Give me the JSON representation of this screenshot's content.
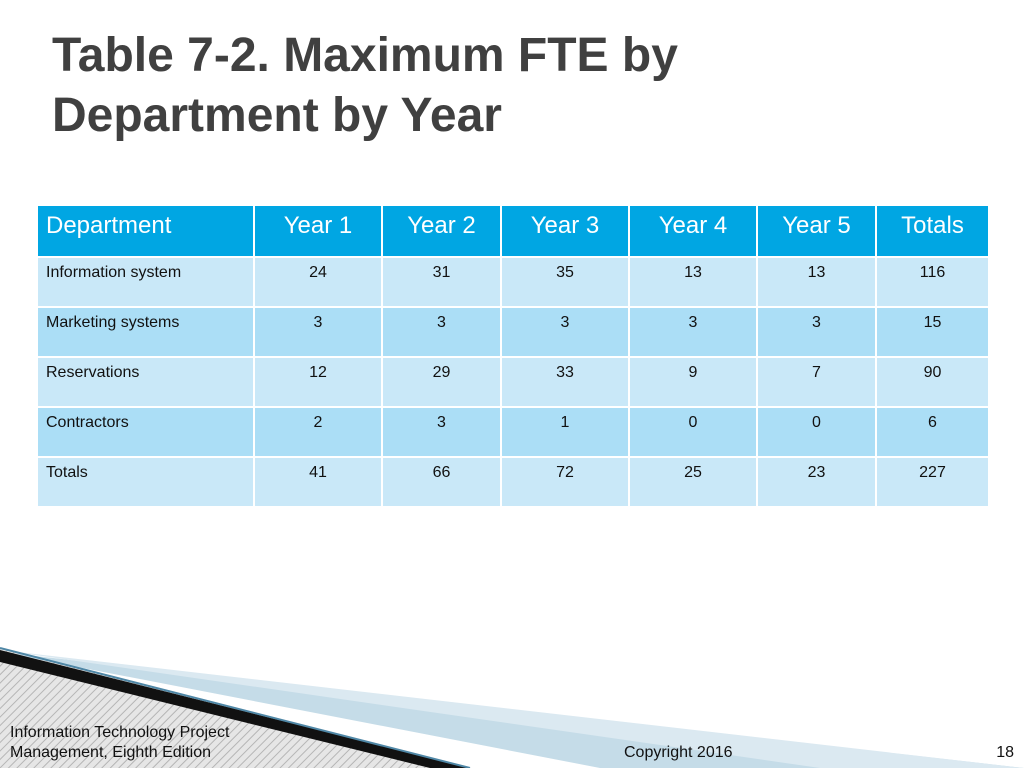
{
  "slide": {
    "title_line1": "Table 7-2. Maximum FTE by",
    "title_line2": "Department by Year"
  },
  "table": {
    "headers": [
      "Department",
      "Year 1",
      "Year 2",
      "Year 3",
      "Year 4",
      "Year 5",
      "Totals"
    ],
    "rows": [
      [
        "Information system",
        "24",
        "31",
        "35",
        "13",
        "13",
        "116"
      ],
      [
        "Marketing systems",
        "3",
        "3",
        "3",
        "3",
        "3",
        "15"
      ],
      [
        "Reservations",
        "12",
        "29",
        "33",
        "9",
        "7",
        "90"
      ],
      [
        "Contractors",
        "2",
        "3",
        "1",
        "0",
        "0",
        "6"
      ],
      [
        "Totals",
        "41",
        "66",
        "72",
        "25",
        "23",
        "227"
      ]
    ]
  },
  "footer": {
    "book_line1": "Information Technology Project",
    "book_line2": "Management, Eighth Edition",
    "copyright": "Copyright 2016",
    "page_number": "18"
  },
  "colors": {
    "title": "#404040",
    "header_fill": "#00a6e3",
    "row_light": "#c9e8f8",
    "row_dark": "#abdef6"
  }
}
